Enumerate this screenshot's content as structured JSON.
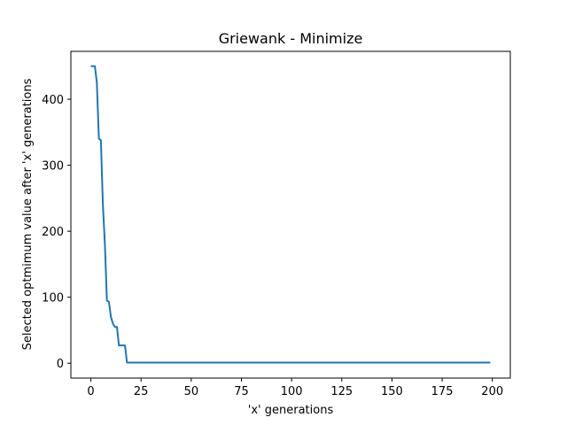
{
  "chart_data": {
    "type": "line",
    "title": "Griewank - Minimize",
    "xlabel": "'x' generations",
    "ylabel": "Selected optmimum value after 'x' generations",
    "xlim": [
      -9.95,
      208.95
    ],
    "ylim": [
      -22.5,
      472.5
    ],
    "xticks": [
      0,
      25,
      50,
      75,
      100,
      125,
      150,
      175,
      200
    ],
    "yticks": [
      0,
      100,
      200,
      300,
      400
    ],
    "grid": false,
    "series": [
      {
        "color": "#1f77b4",
        "x": [
          0,
          2,
          3,
          4,
          5,
          6,
          7,
          8,
          9,
          10,
          11,
          12,
          13,
          14,
          15,
          16,
          17,
          18,
          19,
          20,
          30,
          50,
          100,
          150,
          199
        ],
        "y": [
          450,
          450,
          425,
          340,
          338,
          240,
          180,
          95,
          93,
          70,
          60,
          55,
          55,
          27,
          27,
          27,
          27,
          1,
          1,
          1,
          1,
          1,
          1,
          1,
          1
        ]
      }
    ]
  }
}
